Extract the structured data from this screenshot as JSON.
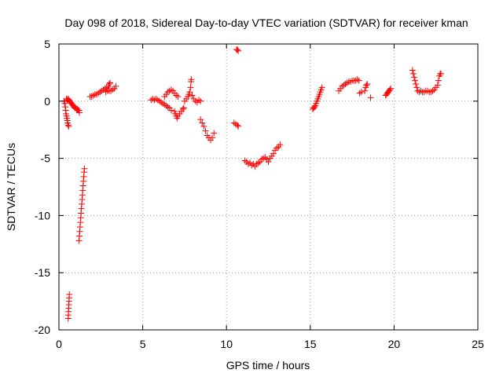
{
  "chart_data": {
    "type": "scatter",
    "title": "Day 098 of 2018, Sidereal Day-to-day VTEC variation (SDTVAR) for receiver kman",
    "xlabel": "GPS time / hours",
    "ylabel": "SDTVAR / TECUs",
    "xlim": [
      0,
      25
    ],
    "ylim": [
      -20,
      5
    ],
    "xticks": [
      0,
      5,
      10,
      15,
      20,
      25
    ],
    "yticks": [
      -20,
      -15,
      -10,
      -5,
      0,
      5
    ],
    "grid": true,
    "marker": "+",
    "color": "#ff0000",
    "series": [
      {
        "name": "SDTVAR",
        "points": [
          [
            0.3,
            0.0
          ],
          [
            0.35,
            -0.2
          ],
          [
            0.38,
            -0.5
          ],
          [
            0.4,
            -0.8
          ],
          [
            0.42,
            -1.1
          ],
          [
            0.45,
            -1.3
          ],
          [
            0.48,
            -1.5
          ],
          [
            0.5,
            -1.7
          ],
          [
            0.52,
            -1.9
          ],
          [
            0.55,
            -2.1
          ],
          [
            0.58,
            -2.2
          ],
          [
            0.45,
            0.2
          ],
          [
            0.5,
            0.1
          ],
          [
            0.55,
            0.2
          ],
          [
            0.6,
            0.1
          ],
          [
            0.65,
            0.0
          ],
          [
            0.7,
            -0.1
          ],
          [
            0.75,
            -0.2
          ],
          [
            0.8,
            -0.3
          ],
          [
            0.85,
            -0.4
          ],
          [
            0.9,
            -0.5
          ],
          [
            0.95,
            -0.6
          ],
          [
            1.0,
            -0.6
          ],
          [
            1.05,
            -0.7
          ],
          [
            1.1,
            -0.7
          ],
          [
            1.15,
            -0.8
          ],
          [
            1.2,
            -0.8
          ],
          [
            1.22,
            -1.0
          ],
          [
            0.55,
            -19.0
          ],
          [
            0.56,
            -18.7
          ],
          [
            0.57,
            -18.4
          ],
          [
            0.58,
            -18.1
          ],
          [
            0.59,
            -17.8
          ],
          [
            0.6,
            -17.5
          ],
          [
            0.61,
            -17.2
          ],
          [
            0.62,
            -16.9
          ],
          [
            1.2,
            -12.2
          ],
          [
            1.22,
            -11.8
          ],
          [
            1.24,
            -11.4
          ],
          [
            1.26,
            -11.0
          ],
          [
            1.28,
            -10.6
          ],
          [
            1.3,
            -10.2
          ],
          [
            1.32,
            -9.8
          ],
          [
            1.34,
            -9.4
          ],
          [
            1.36,
            -9.0
          ],
          [
            1.38,
            -8.6
          ],
          [
            1.4,
            -8.2
          ],
          [
            1.42,
            -7.8
          ],
          [
            1.44,
            -7.4
          ],
          [
            1.46,
            -7.0
          ],
          [
            1.48,
            -6.6
          ],
          [
            1.5,
            -6.2
          ],
          [
            1.52,
            -5.9
          ],
          [
            1.85,
            0.4
          ],
          [
            1.95,
            0.4
          ],
          [
            2.05,
            0.5
          ],
          [
            2.15,
            0.6
          ],
          [
            2.25,
            0.6
          ],
          [
            2.35,
            0.7
          ],
          [
            2.45,
            0.8
          ],
          [
            2.55,
            0.9
          ],
          [
            2.65,
            1.0
          ],
          [
            2.75,
            1.1
          ],
          [
            2.85,
            1.2
          ],
          [
            2.95,
            1.3
          ],
          [
            3.0,
            1.5
          ],
          [
            3.05,
            1.6
          ],
          [
            2.8,
            0.8
          ],
          [
            2.9,
            0.9
          ],
          [
            3.0,
            0.9
          ],
          [
            3.1,
            0.9
          ],
          [
            3.2,
            1.0
          ],
          [
            3.3,
            1.1
          ],
          [
            3.4,
            1.3
          ],
          [
            5.5,
            0.1
          ],
          [
            5.6,
            0.2
          ],
          [
            5.7,
            0.1
          ],
          [
            5.8,
            0.2
          ],
          [
            5.9,
            0.1
          ],
          [
            6.0,
            0.0
          ],
          [
            6.1,
            -0.1
          ],
          [
            6.2,
            -0.2
          ],
          [
            6.3,
            -0.3
          ],
          [
            6.4,
            -0.4
          ],
          [
            6.5,
            -0.5
          ],
          [
            6.6,
            -0.6
          ],
          [
            6.7,
            -0.8
          ],
          [
            6.3,
            0.4
          ],
          [
            6.4,
            0.6
          ],
          [
            6.5,
            0.8
          ],
          [
            6.6,
            0.9
          ],
          [
            6.7,
            1.0
          ],
          [
            6.8,
            0.9
          ],
          [
            6.9,
            0.7
          ],
          [
            7.0,
            0.5
          ],
          [
            7.1,
            0.4
          ],
          [
            6.9,
            -0.9
          ],
          [
            6.95,
            -1.1
          ],
          [
            7.0,
            -1.3
          ],
          [
            7.05,
            -1.5
          ],
          [
            7.1,
            -1.3
          ],
          [
            7.2,
            -1.1
          ],
          [
            7.3,
            -0.9
          ],
          [
            7.4,
            -0.7
          ],
          [
            7.45,
            -0.6
          ],
          [
            7.5,
            0.0
          ],
          [
            7.6,
            0.2
          ],
          [
            7.7,
            0.4
          ],
          [
            7.75,
            0.6
          ],
          [
            7.8,
            0.8
          ],
          [
            7.85,
            1.2
          ],
          [
            7.88,
            1.7
          ],
          [
            7.9,
            1.9
          ],
          [
            7.95,
            0.5
          ],
          [
            8.05,
            0.2
          ],
          [
            8.15,
            0.0
          ],
          [
            8.25,
            -0.1
          ],
          [
            8.35,
            0.1
          ],
          [
            8.45,
            0.0
          ],
          [
            8.45,
            -1.6
          ],
          [
            8.55,
            -1.9
          ],
          [
            8.65,
            -2.2
          ],
          [
            8.75,
            -2.6
          ],
          [
            8.85,
            -3.0
          ],
          [
            8.95,
            -3.2
          ],
          [
            9.05,
            -3.4
          ],
          [
            9.15,
            -3.2
          ],
          [
            9.25,
            -2.8
          ],
          [
            10.45,
            -1.9
          ],
          [
            10.55,
            -2.0
          ],
          [
            10.65,
            -2.1
          ],
          [
            10.7,
            -2.2
          ],
          [
            10.6,
            4.5
          ],
          [
            10.65,
            4.5
          ],
          [
            10.7,
            4.4
          ],
          [
            11.1,
            -5.2
          ],
          [
            11.2,
            -5.3
          ],
          [
            11.3,
            -5.5
          ],
          [
            11.4,
            -5.4
          ],
          [
            11.5,
            -5.6
          ],
          [
            11.6,
            -5.5
          ],
          [
            11.7,
            -5.7
          ],
          [
            11.8,
            -5.5
          ],
          [
            11.9,
            -5.4
          ],
          [
            12.0,
            -5.3
          ],
          [
            12.1,
            -5.1
          ],
          [
            12.2,
            -5.0
          ],
          [
            12.3,
            -4.9
          ],
          [
            12.4,
            -5.1
          ],
          [
            12.5,
            -5.3
          ],
          [
            12.6,
            -5.0
          ],
          [
            12.7,
            -4.8
          ],
          [
            12.8,
            -4.6
          ],
          [
            12.9,
            -4.3
          ],
          [
            13.0,
            -4.1
          ],
          [
            13.1,
            -4.0
          ],
          [
            13.2,
            -3.8
          ],
          [
            15.15,
            -0.7
          ],
          [
            15.2,
            -0.6
          ],
          [
            15.25,
            -0.5
          ],
          [
            15.3,
            -0.4
          ],
          [
            15.35,
            -0.2
          ],
          [
            15.4,
            0.0
          ],
          [
            15.45,
            0.2
          ],
          [
            15.5,
            0.4
          ],
          [
            15.55,
            0.6
          ],
          [
            15.6,
            0.8
          ],
          [
            15.65,
            1.0
          ],
          [
            15.7,
            1.2
          ],
          [
            16.7,
            0.9
          ],
          [
            16.8,
            1.1
          ],
          [
            16.9,
            1.3
          ],
          [
            17.0,
            1.4
          ],
          [
            17.1,
            1.5
          ],
          [
            17.2,
            1.6
          ],
          [
            17.3,
            1.7
          ],
          [
            17.4,
            1.7
          ],
          [
            17.5,
            1.8
          ],
          [
            17.6,
            1.8
          ],
          [
            17.7,
            1.8
          ],
          [
            17.8,
            1.9
          ],
          [
            17.9,
            1.8
          ],
          [
            17.95,
            0.7
          ],
          [
            18.05,
            0.8
          ],
          [
            18.25,
            0.9
          ],
          [
            18.3,
            1.2
          ],
          [
            18.35,
            1.4
          ],
          [
            18.4,
            1.5
          ],
          [
            18.6,
            0.3
          ],
          [
            19.5,
            0.5
          ],
          [
            19.55,
            0.6
          ],
          [
            19.6,
            0.7
          ],
          [
            19.65,
            0.8
          ],
          [
            19.7,
            0.9
          ],
          [
            19.75,
            1.0
          ],
          [
            19.8,
            1.1
          ],
          [
            21.1,
            2.7
          ],
          [
            21.15,
            2.4
          ],
          [
            21.2,
            2.1
          ],
          [
            21.25,
            1.8
          ],
          [
            21.3,
            1.5
          ],
          [
            21.35,
            1.2
          ],
          [
            21.4,
            0.9
          ],
          [
            21.5,
            0.8
          ],
          [
            21.6,
            0.9
          ],
          [
            21.7,
            0.8
          ],
          [
            21.8,
            0.8
          ],
          [
            21.9,
            0.9
          ],
          [
            22.0,
            0.9
          ],
          [
            22.1,
            0.8
          ],
          [
            22.2,
            0.8
          ],
          [
            22.3,
            0.9
          ],
          [
            22.4,
            1.0
          ],
          [
            22.5,
            1.2
          ],
          [
            22.6,
            1.4
          ],
          [
            22.65,
            1.8
          ],
          [
            22.7,
            2.2
          ],
          [
            22.75,
            2.4
          ],
          [
            22.8,
            2.4
          ]
        ]
      }
    ]
  }
}
